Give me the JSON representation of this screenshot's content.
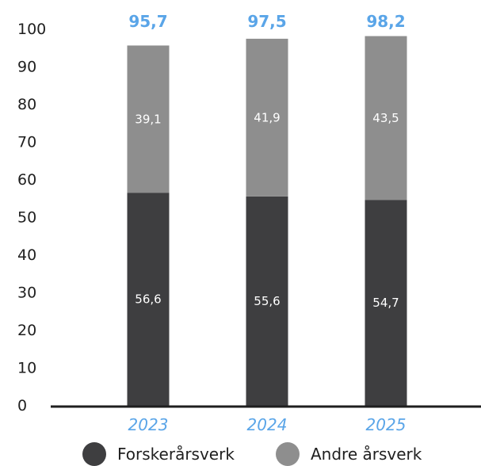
{
  "chart_data": {
    "type": "bar",
    "stacked": true,
    "categories": [
      "2023",
      "2024",
      "2025"
    ],
    "series": [
      {
        "name": "Forskerårsverk",
        "values": [
          56.6,
          55.6,
          54.7
        ],
        "value_labels": [
          "56,6",
          "55,6",
          "54,7"
        ],
        "color": "#3e3e40"
      },
      {
        "name": "Andre årsverk",
        "values": [
          39.1,
          41.9,
          43.5
        ],
        "value_labels": [
          "39,1",
          "41,9",
          "43,5"
        ],
        "color": "#8e8e8e"
      }
    ],
    "totals": [
      95.7,
      97.5,
      98.2
    ],
    "total_labels": [
      "95,7",
      "97,5",
      "98,2"
    ],
    "ylim": [
      0,
      100
    ],
    "yticks": [
      0,
      10,
      20,
      30,
      40,
      50,
      60,
      70,
      80,
      90,
      100
    ],
    "grid": false,
    "legend_position": "bottom",
    "category_label_color": "#5aa5e8",
    "total_label_color": "#5aa5e8"
  }
}
